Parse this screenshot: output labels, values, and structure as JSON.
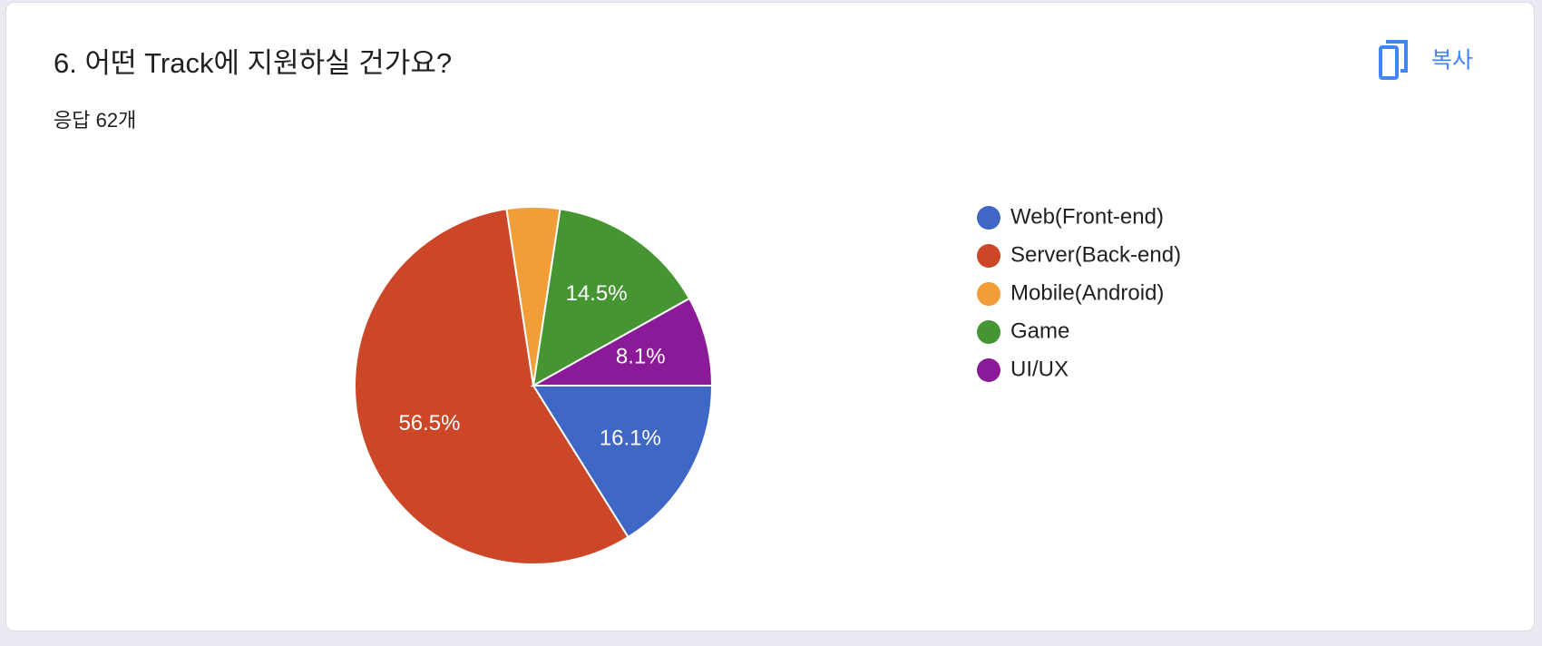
{
  "chart_data": {
    "type": "pie",
    "title": "6. 어떤 Track에 지원하실 건가요?",
    "subtitle": "응답 62개",
    "copy_label": "복사",
    "categories": [
      "Web(Front-end)",
      "Server(Back-end)",
      "Mobile(Android)",
      "Game",
      "UI/UX"
    ],
    "values": [
      16.1,
      56.5,
      4.8,
      14.5,
      8.1
    ],
    "value_labels": [
      "16.1%",
      "56.5%",
      null,
      "14.5%",
      "8.1%"
    ],
    "colors": [
      "#3f67c6",
      "#cc4727",
      "#f19d38",
      "#459632",
      "#8b1a98"
    ],
    "legend": "right"
  }
}
